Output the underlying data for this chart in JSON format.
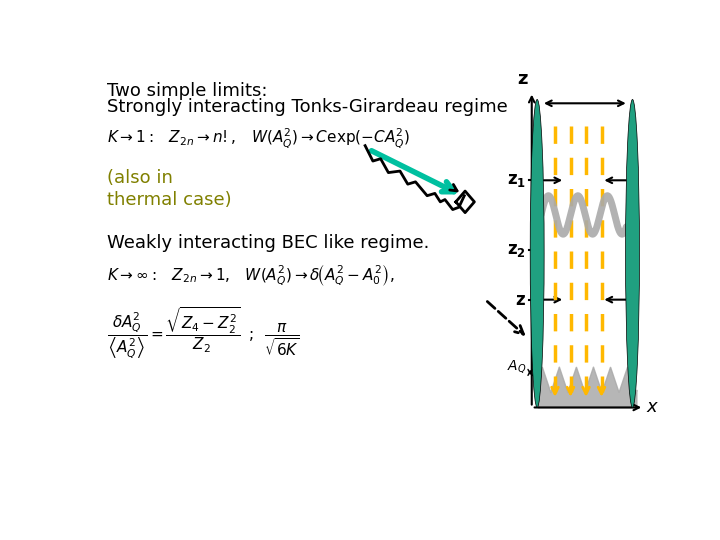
{
  "bg_color": "#ffffff",
  "title_text": "Two simple limits:",
  "line1_text": "Strongly interacting Tonks-Girardeau regime",
  "line2_text": "(also in\nthermal case)",
  "line3_text": "Weakly interacting BEC like regime.",
  "eq1": "$K \\rightarrow 1:\\;\\;\\; Z_{2n} \\rightarrow n!,\\;\\;\\; W(A_Q^2) \\rightarrow C\\mathrm{exp}(-CA_Q^2)$",
  "eq2": "$K \\rightarrow \\infty:\\;\\;\\; Z_{2n} \\rightarrow 1,\\;\\;\\; W(A_Q^2) \\rightarrow \\delta\\!\\left(A_Q^2 - A_0^2\\right),$",
  "eq3": "$\\dfrac{\\delta A_Q^2}{\\left\\langle A_Q^2 \\right\\rangle} = \\dfrac{\\sqrt{Z_4 - Z_2^2}}{Z_2}\\;\\;;\\;\\; \\dfrac{\\pi}{\\sqrt{6K}}$",
  "label_z1": "$\\mathbf{z_1}$",
  "label_z2": "$\\mathbf{z_2}$",
  "label_z": "$\\mathbf{z}$",
  "label_AQ": "$A_Q$",
  "label_x": "$x$",
  "olive_color": "#808000",
  "teal_color": "#20A080",
  "yellow_color": "#FFB800",
  "gray_color": "#AAAAAA",
  "dark_gray": "#888888"
}
